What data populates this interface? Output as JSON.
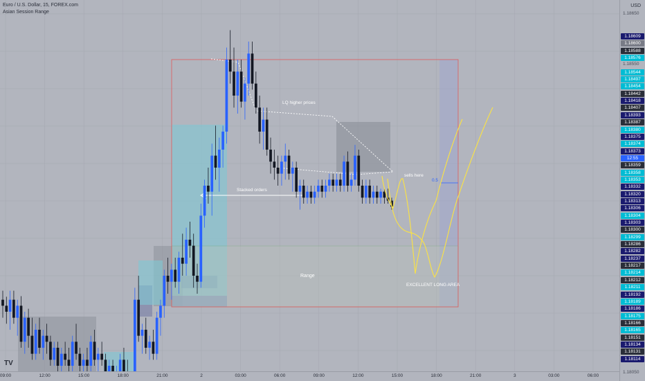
{
  "header": {
    "symbol_line": "Euro / U.S. Dollar, 15, FOREX.com",
    "indicator": "Asian Session Range"
  },
  "currency": "USD",
  "price_axis": {
    "ticks": [
      {
        "value": "1.18650",
        "style": "plain"
      },
      {
        "value": "1.18609",
        "style": "navy"
      },
      {
        "value": "1.18600",
        "style": "grey"
      },
      {
        "value": "1.18588",
        "style": "dark"
      },
      {
        "value": "1.18576",
        "style": "cyan"
      },
      {
        "value": "1.18550",
        "style": "plain"
      },
      {
        "value": "1.18544",
        "style": "cyan"
      },
      {
        "value": "1.18497",
        "style": "cyan"
      },
      {
        "value": "1.18454",
        "style": "cyan"
      },
      {
        "value": "1.18442",
        "style": "dark"
      },
      {
        "value": "1.18418",
        "style": "navy"
      },
      {
        "value": "1.18407",
        "style": "dark"
      },
      {
        "value": "1.18393",
        "style": "navy"
      },
      {
        "value": "1.18387",
        "style": "dark"
      },
      {
        "value": "1.18380",
        "style": "cyan"
      },
      {
        "value": "1.18375",
        "style": "navy"
      },
      {
        "value": "1.18374",
        "style": "cyan"
      },
      {
        "value": "1.18373",
        "style": "navy"
      },
      {
        "value": "12:55",
        "style": "blue"
      },
      {
        "value": "1.18359",
        "style": "dark"
      },
      {
        "value": "1.18358",
        "style": "cyan"
      },
      {
        "value": "1.18353",
        "style": "cyan"
      },
      {
        "value": "1.18332",
        "style": "navy"
      },
      {
        "value": "1.18320",
        "style": "navy"
      },
      {
        "value": "1.18313",
        "style": "navy"
      },
      {
        "value": "1.18306",
        "style": "navy"
      },
      {
        "value": "1.18304",
        "style": "cyan"
      },
      {
        "value": "1.18303",
        "style": "navy"
      },
      {
        "value": "1.18300",
        "style": "dark"
      },
      {
        "value": "1.18299",
        "style": "cyan"
      },
      {
        "value": "1.18286",
        "style": "dark"
      },
      {
        "value": "1.18282",
        "style": "navy"
      },
      {
        "value": "1.18237",
        "style": "navy"
      },
      {
        "value": "1.18217",
        "style": "dark"
      },
      {
        "value": "1.18214",
        "style": "cyan"
      },
      {
        "value": "1.18212",
        "style": "dark"
      },
      {
        "value": "1.18211",
        "style": "cyan"
      },
      {
        "value": "1.18192",
        "style": "navy"
      },
      {
        "value": "1.18189",
        "style": "cyan"
      },
      {
        "value": "1.18186",
        "style": "navy"
      },
      {
        "value": "1.18175",
        "style": "cyan"
      },
      {
        "value": "1.18166",
        "style": "dark"
      },
      {
        "value": "1.18165",
        "style": "cyan"
      },
      {
        "value": "1.18151",
        "style": "dark"
      },
      {
        "value": "1.18134",
        "style": "navy"
      },
      {
        "value": "1.18131",
        "style": "dark"
      },
      {
        "value": "1.18114",
        "style": "navy"
      },
      {
        "value": "1.18050",
        "style": "plain"
      }
    ]
  },
  "time_axis": [
    "09:00",
    "12:00",
    "15:00",
    "18:00",
    "21:00",
    "2",
    "03:00",
    "06:00",
    "09:00",
    "12:00",
    "15:00",
    "18:00",
    "21:00",
    "3",
    "03:00",
    "06:00"
  ],
  "annotations": {
    "lq": "LQ higher prices",
    "stacked": "Stacked orders",
    "sells": "sells here",
    "range": "Range",
    "long_area": "EXCELLENT LONG AREA",
    "fib": "0.5"
  },
  "colors": {
    "bull": "#2962ff",
    "bear": "#131722",
    "navy": "#1a1a6e",
    "cyan": "#00bcd4",
    "dark": "#2a2e39",
    "grey": "#787b86",
    "blue": "#2962ff",
    "sketch": "#ffeb3b"
  },
  "chart_data": {
    "type": "candlestick",
    "symbol": "EUR/USD",
    "timeframe": "15",
    "ylim": [
      1.1805,
      1.1865
    ],
    "candles": [
      [
        1.1816,
        1.18175,
        1.1813,
        1.1815
      ],
      [
        1.1815,
        1.18165,
        1.1812,
        1.1814
      ],
      [
        1.1814,
        1.18175,
        1.1811,
        1.1816
      ],
      [
        1.1816,
        1.18175,
        1.1812,
        1.1813
      ],
      [
        1.1813,
        1.1816,
        1.181,
        1.1815
      ],
      [
        1.1815,
        1.18166,
        1.1808,
        1.1809
      ],
      [
        1.1809,
        1.1814,
        1.1807,
        1.1813
      ],
      [
        1.1813,
        1.18145,
        1.1808,
        1.181
      ],
      [
        1.181,
        1.1813,
        1.1806,
        1.1807
      ],
      [
        1.1807,
        1.1812,
        1.1806,
        1.1811
      ],
      [
        1.1811,
        1.1813,
        1.1807,
        1.1808
      ],
      [
        1.1808,
        1.1811,
        1.1806,
        1.181
      ],
      [
        1.181,
        1.1812,
        1.1807,
        1.1809
      ],
      [
        1.1809,
        1.181,
        1.1805,
        1.1806
      ],
      [
        1.1806,
        1.1809,
        1.1805,
        1.1808
      ],
      [
        1.1808,
        1.1809,
        1.1804,
        1.1805
      ],
      [
        1.1805,
        1.1808,
        1.1804,
        1.1807
      ],
      [
        1.1807,
        1.1809,
        1.1805,
        1.1806
      ],
      [
        1.1806,
        1.1808,
        1.1804,
        1.1805
      ],
      [
        1.1805,
        1.181,
        1.1804,
        1.1809
      ],
      [
        1.1809,
        1.1812,
        1.1806,
        1.1807
      ],
      [
        1.1807,
        1.1808,
        1.1804,
        1.1805
      ],
      [
        1.1805,
        1.1807,
        1.1803,
        1.1806
      ],
      [
        1.1806,
        1.1808,
        1.1804,
        1.1805
      ],
      [
        1.1805,
        1.181,
        1.1804,
        1.1809
      ],
      [
        1.1809,
        1.1811,
        1.1805,
        1.1806
      ],
      [
        1.1806,
        1.1808,
        1.1804,
        1.1807
      ],
      [
        1.1807,
        1.1809,
        1.1805,
        1.1806
      ],
      [
        1.1806,
        1.1807,
        1.1802,
        1.1803
      ],
      [
        1.1803,
        1.1806,
        1.18,
        1.1805
      ],
      [
        1.1805,
        1.1806,
        1.1801,
        1.1802
      ],
      [
        1.1802,
        1.1805,
        1.18,
        1.1804
      ],
      [
        1.1804,
        1.1807,
        1.1802,
        1.1806
      ],
      [
        1.1806,
        1.1808,
        1.1803,
        1.1804
      ],
      [
        1.1804,
        1.1806,
        1.1801,
        1.1802
      ],
      [
        1.1802,
        1.1804,
        1.18,
        1.1803
      ],
      [
        1.1803,
        1.1818,
        1.1802,
        1.1816
      ],
      [
        1.1816,
        1.182,
        1.1809,
        1.181
      ],
      [
        1.181,
        1.1812,
        1.1807,
        1.1811
      ],
      [
        1.1811,
        1.1813,
        1.1807,
        1.1808
      ],
      [
        1.1808,
        1.181,
        1.1806,
        1.1809
      ],
      [
        1.1809,
        1.1811,
        1.1806,
        1.1807
      ],
      [
        1.1807,
        1.1814,
        1.1806,
        1.1813
      ],
      [
        1.1813,
        1.1816,
        1.181,
        1.1815
      ],
      [
        1.1815,
        1.1821,
        1.1813,
        1.182
      ],
      [
        1.182,
        1.1823,
        1.1817,
        1.1819
      ],
      [
        1.1819,
        1.1822,
        1.1816,
        1.1821
      ],
      [
        1.1821,
        1.1823,
        1.1818,
        1.1819
      ],
      [
        1.1819,
        1.1824,
        1.1817,
        1.1823
      ],
      [
        1.1823,
        1.1827,
        1.182,
        1.1822
      ],
      [
        1.1822,
        1.1828,
        1.182,
        1.1826
      ],
      [
        1.1826,
        1.1829,
        1.1823,
        1.1825
      ],
      [
        1.1825,
        1.1827,
        1.1818,
        1.182
      ],
      [
        1.182,
        1.1822,
        1.1817,
        1.1819
      ],
      [
        1.1819,
        1.1832,
        1.1818,
        1.183
      ],
      [
        1.183,
        1.1836,
        1.1828,
        1.1835
      ],
      [
        1.1835,
        1.1838,
        1.1832,
        1.1834
      ],
      [
        1.1834,
        1.1842,
        1.183,
        1.184
      ],
      [
        1.184,
        1.1845,
        1.1836,
        1.1838
      ],
      [
        1.1838,
        1.1843,
        1.1834,
        1.1841
      ],
      [
        1.1841,
        1.1845,
        1.1838,
        1.1844
      ],
      [
        1.1844,
        1.1858,
        1.1842,
        1.1856
      ],
      [
        1.1856,
        1.18609,
        1.1852,
        1.1854
      ],
      [
        1.1854,
        1.1858,
        1.1848,
        1.185
      ],
      [
        1.185,
        1.1856,
        1.1847,
        1.1854
      ],
      [
        1.1854,
        1.1856,
        1.1848,
        1.1849
      ],
      [
        1.1849,
        1.1853,
        1.1846,
        1.1852
      ],
      [
        1.1852,
        1.1859,
        1.185,
        1.1857
      ],
      [
        1.1857,
        1.1859,
        1.1851,
        1.1852
      ],
      [
        1.1852,
        1.1854,
        1.1847,
        1.1848
      ],
      [
        1.1848,
        1.185,
        1.1842,
        1.1844
      ],
      [
        1.1844,
        1.1848,
        1.1841,
        1.1846
      ],
      [
        1.1846,
        1.1848,
        1.184,
        1.1841
      ],
      [
        1.1841,
        1.1843,
        1.1837,
        1.1839
      ],
      [
        1.1839,
        1.1841,
        1.1836,
        1.1838
      ],
      [
        1.1838,
        1.184,
        1.1835,
        1.1837
      ],
      [
        1.1837,
        1.184,
        1.1835,
        1.1839
      ],
      [
        1.1839,
        1.1842,
        1.1836,
        1.184
      ],
      [
        1.184,
        1.1841,
        1.1836,
        1.1837
      ],
      [
        1.1837,
        1.1839,
        1.1834,
        1.1838
      ],
      [
        1.1838,
        1.1839,
        1.1833,
        1.1834
      ],
      [
        1.1834,
        1.1836,
        1.1831,
        1.1835
      ],
      [
        1.1835,
        1.1836,
        1.1832,
        1.1833
      ],
      [
        1.1833,
        1.1835,
        1.1832,
        1.1834
      ],
      [
        1.1834,
        1.1835,
        1.1832,
        1.1833
      ],
      [
        1.1833,
        1.1835,
        1.1832,
        1.1834
      ],
      [
        1.1834,
        1.1836,
        1.1833,
        1.1835
      ],
      [
        1.1835,
        1.1836,
        1.1833,
        1.1834
      ],
      [
        1.1834,
        1.1836,
        1.1833,
        1.1835
      ],
      [
        1.1835,
        1.1837,
        1.1834,
        1.1836
      ],
      [
        1.1836,
        1.1837,
        1.1834,
        1.1835
      ],
      [
        1.1835,
        1.1837,
        1.1834,
        1.1836
      ],
      [
        1.1836,
        1.1837,
        1.1834,
        1.1835
      ],
      [
        1.1835,
        1.184,
        1.1834,
        1.1839
      ],
      [
        1.1839,
        1.18407,
        1.1834,
        1.1835
      ],
      [
        1.1835,
        1.1837,
        1.1834,
        1.1836
      ],
      [
        1.1836,
        1.18418,
        1.1835,
        1.184
      ],
      [
        1.184,
        1.1841,
        1.1834,
        1.1835
      ],
      [
        1.1835,
        1.1836,
        1.1832,
        1.1833
      ],
      [
        1.1833,
        1.1836,
        1.1832,
        1.1835
      ],
      [
        1.1835,
        1.1836,
        1.1832,
        1.1833
      ],
      [
        1.1833,
        1.1835,
        1.1832,
        1.1834
      ],
      [
        1.1834,
        1.1835,
        1.1832,
        1.1833
      ],
      [
        1.1833,
        1.18345,
        1.1832,
        1.1834
      ],
      [
        1.1834,
        1.18345,
        1.1832,
        1.1833
      ],
      [
        1.1833,
        1.18345,
        1.1832,
        1.18325
      ],
      [
        1.18325,
        1.1833,
        1.1831,
        1.18315
      ]
    ],
    "zones": [
      "Asian Session Range",
      "Range",
      "Stacked orders",
      "LQ higher prices",
      "EXCELLENT LONG AREA"
    ]
  }
}
